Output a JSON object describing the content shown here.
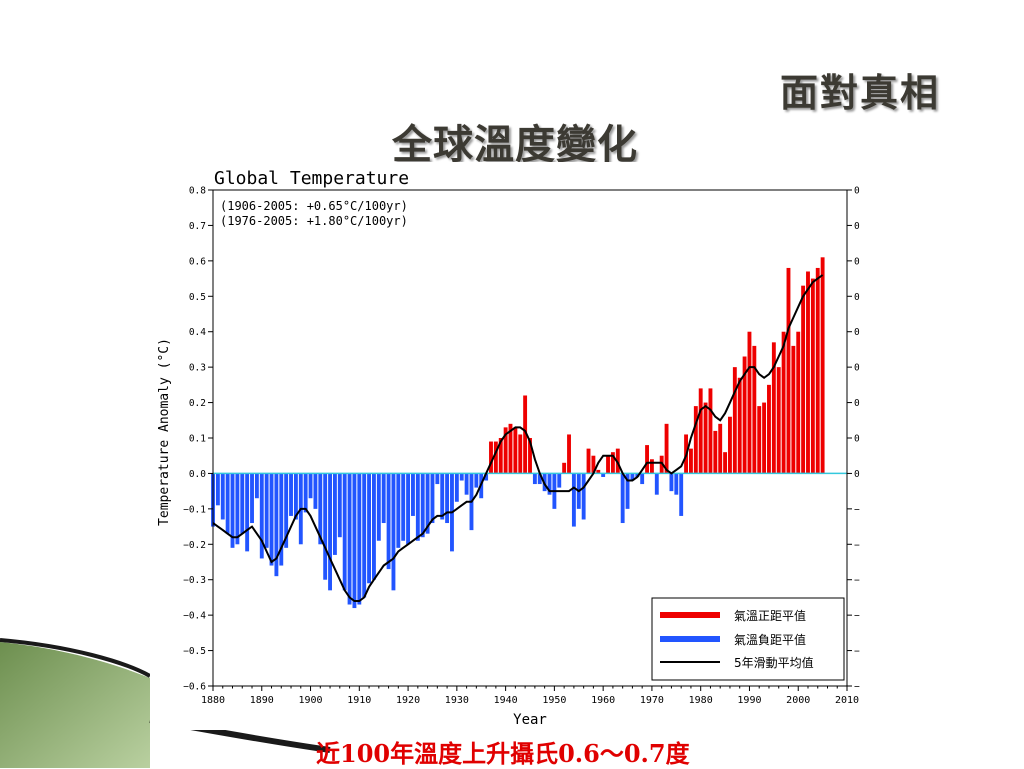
{
  "slide": {
    "title": "面對真相",
    "subtitle": "全球溫度變化",
    "footer": "近100年溫度上升攝氏0.6～0.7度"
  },
  "chart_data": {
    "type": "bar",
    "title": "Global Temperature",
    "trend_notes": [
      "(1906-2005:  +0.65°C/100yr)",
      "(1976-2005:  +1.80°C/100yr)"
    ],
    "xlabel": "Year",
    "ylabel": "Temperature Anomaly (°C)",
    "xlim": [
      1880,
      2010
    ],
    "ylim": [
      -0.6,
      0.8
    ],
    "xticks": [
      1880,
      1890,
      1900,
      1910,
      1920,
      1930,
      1940,
      1950,
      1960,
      1970,
      1980,
      1990,
      2000,
      2010
    ],
    "yticks": [
      -0.6,
      -0.5,
      -0.4,
      -0.3,
      -0.2,
      -0.1,
      0.0,
      0.1,
      0.2,
      0.3,
      0.4,
      0.5,
      0.6,
      0.7,
      0.8
    ],
    "ytick_labels": [
      "−0.6",
      "−0.5",
      "−0.4",
      "−0.3",
      "−0.2",
      "−0.1",
      "0.0",
      "0.1",
      "0.2",
      "0.3",
      "0.4",
      "0.5",
      "0.6",
      "0.7",
      "0.8"
    ],
    "years": [
      1880,
      1881,
      1882,
      1883,
      1884,
      1885,
      1886,
      1887,
      1888,
      1889,
      1890,
      1891,
      1892,
      1893,
      1894,
      1895,
      1896,
      1897,
      1898,
      1899,
      1900,
      1901,
      1902,
      1903,
      1904,
      1905,
      1906,
      1907,
      1908,
      1909,
      1910,
      1911,
      1912,
      1913,
      1914,
      1915,
      1916,
      1917,
      1918,
      1919,
      1920,
      1921,
      1922,
      1923,
      1924,
      1925,
      1926,
      1927,
      1928,
      1929,
      1930,
      1931,
      1932,
      1933,
      1934,
      1935,
      1936,
      1937,
      1938,
      1939,
      1940,
      1941,
      1942,
      1943,
      1944,
      1945,
      1946,
      1947,
      1948,
      1949,
      1950,
      1951,
      1952,
      1953,
      1954,
      1955,
      1956,
      1957,
      1958,
      1959,
      1960,
      1961,
      1962,
      1963,
      1964,
      1965,
      1966,
      1967,
      1968,
      1969,
      1970,
      1971,
      1972,
      1973,
      1974,
      1975,
      1976,
      1977,
      1978,
      1979,
      1980,
      1981,
      1982,
      1983,
      1984,
      1985,
      1986,
      1987,
      1988,
      1989,
      1990,
      1991,
      1992,
      1993,
      1994,
      1995,
      1996,
      1997,
      1998,
      1999,
      2000,
      2001,
      2002,
      2003,
      2004,
      2005
    ],
    "anomaly": [
      -0.15,
      -0.09,
      -0.13,
      -0.17,
      -0.21,
      -0.2,
      -0.17,
      -0.22,
      -0.14,
      -0.07,
      -0.24,
      -0.21,
      -0.26,
      -0.29,
      -0.26,
      -0.21,
      -0.12,
      -0.13,
      -0.2,
      -0.11,
      -0.07,
      -0.1,
      -0.2,
      -0.3,
      -0.33,
      -0.23,
      -0.18,
      -0.33,
      -0.37,
      -0.38,
      -0.37,
      -0.35,
      -0.31,
      -0.3,
      -0.19,
      -0.14,
      -0.27,
      -0.33,
      -0.21,
      -0.19,
      -0.2,
      -0.12,
      -0.19,
      -0.18,
      -0.17,
      -0.14,
      -0.03,
      -0.13,
      -0.14,
      -0.22,
      -0.08,
      -0.02,
      -0.06,
      -0.16,
      -0.04,
      -0.07,
      -0.02,
      0.09,
      0.09,
      0.1,
      0.13,
      0.14,
      0.13,
      0.11,
      0.22,
      0.1,
      -0.03,
      -0.03,
      -0.05,
      -0.06,
      -0.1,
      -0.04,
      0.03,
      0.11,
      -0.15,
      -0.1,
      -0.13,
      0.07,
      0.05,
      0.01,
      -0.01,
      0.05,
      0.06,
      0.07,
      -0.14,
      -0.1,
      -0.02,
      -0.01,
      -0.03,
      0.08,
      0.04,
      -0.06,
      0.05,
      0.14,
      -0.05,
      -0.06,
      -0.12,
      0.11,
      0.07,
      0.19,
      0.24,
      0.2,
      0.24,
      0.12,
      0.14,
      0.06,
      0.16,
      0.3,
      0.27,
      0.33,
      0.4,
      0.36,
      0.19,
      0.2,
      0.25,
      0.37,
      0.3,
      0.4,
      0.58,
      0.36,
      0.4,
      0.53,
      0.57,
      0.55,
      0.58,
      0.61
    ],
    "smoothed": [
      -0.14,
      -0.15,
      -0.16,
      -0.17,
      -0.18,
      -0.18,
      -0.17,
      -0.16,
      -0.15,
      -0.17,
      -0.19,
      -0.22,
      -0.25,
      -0.24,
      -0.21,
      -0.18,
      -0.15,
      -0.12,
      -0.1,
      -0.1,
      -0.12,
      -0.15,
      -0.18,
      -0.21,
      -0.24,
      -0.27,
      -0.3,
      -0.33,
      -0.35,
      -0.36,
      -0.36,
      -0.35,
      -0.32,
      -0.3,
      -0.28,
      -0.26,
      -0.25,
      -0.24,
      -0.22,
      -0.21,
      -0.2,
      -0.19,
      -0.18,
      -0.17,
      -0.15,
      -0.13,
      -0.12,
      -0.12,
      -0.11,
      -0.11,
      -0.1,
      -0.09,
      -0.08,
      -0.08,
      -0.06,
      -0.03,
      0.0,
      0.03,
      0.06,
      0.09,
      0.11,
      0.12,
      0.13,
      0.13,
      0.12,
      0.09,
      0.04,
      0.0,
      -0.03,
      -0.05,
      -0.05,
      -0.05,
      -0.05,
      -0.05,
      -0.04,
      -0.05,
      -0.04,
      -0.02,
      0.0,
      0.03,
      0.05,
      0.05,
      0.05,
      0.03,
      0.0,
      -0.02,
      -0.02,
      -0.01,
      0.01,
      0.03,
      0.03,
      0.03,
      0.03,
      0.01,
      0.0,
      0.01,
      0.02,
      0.05,
      0.1,
      0.14,
      0.18,
      0.19,
      0.18,
      0.16,
      0.15,
      0.17,
      0.2,
      0.23,
      0.26,
      0.28,
      0.3,
      0.3,
      0.28,
      0.27,
      0.28,
      0.3,
      0.33,
      0.36,
      0.41,
      0.44,
      0.47,
      0.5,
      0.52,
      0.54,
      0.55,
      0.56
    ],
    "legend": {
      "position": "bottom-right",
      "entries": [
        "氣溫正距平值",
        "氣溫負距平值",
        "5年滑動平均值"
      ]
    },
    "colors": {
      "positive": "#ee0000",
      "negative": "#2255ff",
      "smoothed": "#000000",
      "zero_line": "#33c8dd"
    }
  }
}
